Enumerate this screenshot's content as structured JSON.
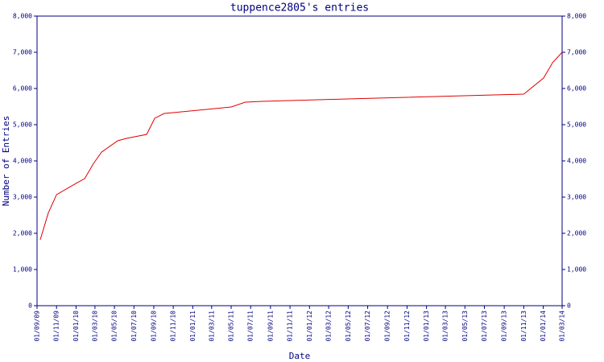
{
  "chart_data": {
    "type": "line",
    "title": "tuppence2805's entries",
    "xlabel": "Date",
    "ylabel": "Number of Entries",
    "color": "#e00000",
    "x": [
      "2009-09-11",
      "2009-10-06",
      "2009-11-01",
      "2010-01-01",
      "2010-01-28",
      "2010-02-25",
      "2010-03-22",
      "2010-05-11",
      "2010-06-08",
      "2010-08-10",
      "2010-09-04",
      "2010-10-04",
      "2010-11-01",
      "2011-05-01",
      "2011-06-14",
      "2011-08-06",
      "2011-11-01",
      "2013-11-01",
      "2014-01-02",
      "2014-01-30",
      "2014-03-01"
    ],
    "values": [
      1822,
      2556,
      3067,
      3378,
      3511,
      3933,
      4244,
      4556,
      4622,
      4733,
      5178,
      5311,
      5333,
      5489,
      5622,
      5644,
      5667,
      5844,
      6289,
      6711,
      7000
    ],
    "xlim": [
      "2009-09-01",
      "2014-03-01"
    ],
    "xticks": [
      {
        "value": "2009-09-01",
        "label": "01/09/09"
      },
      {
        "value": "2009-11-01",
        "label": "01/11/09"
      },
      {
        "value": "2010-01-01",
        "label": "01/01/10"
      },
      {
        "value": "2010-03-01",
        "label": "01/03/10"
      },
      {
        "value": "2010-05-01",
        "label": "01/05/10"
      },
      {
        "value": "2010-07-01",
        "label": "01/07/10"
      },
      {
        "value": "2010-09-01",
        "label": "01/09/10"
      },
      {
        "value": "2010-11-01",
        "label": "01/11/10"
      },
      {
        "value": "2011-01-01",
        "label": "01/01/11"
      },
      {
        "value": "2011-03-01",
        "label": "01/03/11"
      },
      {
        "value": "2011-05-01",
        "label": "01/05/11"
      },
      {
        "value": "2011-07-01",
        "label": "01/07/11"
      },
      {
        "value": "2011-09-01",
        "label": "01/09/11"
      },
      {
        "value": "2011-11-01",
        "label": "01/11/11"
      },
      {
        "value": "2012-01-01",
        "label": "01/01/12"
      },
      {
        "value": "2012-03-01",
        "label": "01/03/12"
      },
      {
        "value": "2012-05-01",
        "label": "01/05/12"
      },
      {
        "value": "2012-07-01",
        "label": "01/07/12"
      },
      {
        "value": "2012-09-01",
        "label": "01/09/12"
      },
      {
        "value": "2012-11-01",
        "label": "01/11/12"
      },
      {
        "value": "2013-01-01",
        "label": "01/01/13"
      },
      {
        "value": "2013-03-01",
        "label": "01/03/13"
      },
      {
        "value": "2013-05-01",
        "label": "01/05/13"
      },
      {
        "value": "2013-07-01",
        "label": "01/07/13"
      },
      {
        "value": "2013-09-01",
        "label": "01/09/13"
      },
      {
        "value": "2013-11-01",
        "label": "01/11/13"
      },
      {
        "value": "2014-01-01",
        "label": "01/01/14"
      },
      {
        "value": "2014-03-01",
        "label": "01/03/14"
      }
    ],
    "ylim": [
      0,
      8000
    ],
    "yticks": [
      0,
      {
        "value": 1000,
        "label": "1,000"
      },
      {
        "value": 2000,
        "label": "2,000"
      },
      {
        "value": 3000,
        "label": "3,000"
      },
      {
        "value": 4000,
        "label": "4,000"
      },
      {
        "value": 5000,
        "label": "5,000"
      },
      {
        "value": 6000,
        "label": "6,000"
      },
      {
        "value": 7000,
        "label": "7,000"
      },
      {
        "value": 8000,
        "label": "8,000"
      }
    ],
    "right_axis": true
  }
}
